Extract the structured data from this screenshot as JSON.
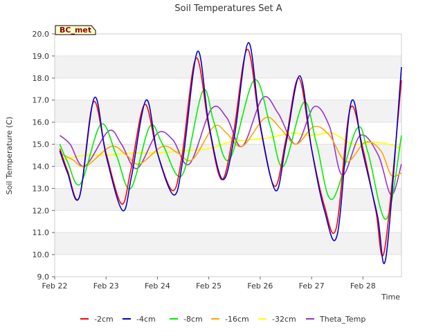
{
  "chart_data": {
    "type": "line",
    "title": "Soil Temperatures Set A",
    "xlabel": "Time",
    "ylabel": "Soil Temperature (C)",
    "badge": "BC_met",
    "ylim": [
      9.0,
      20.0
    ],
    "xlim": [
      0,
      6.75
    ],
    "yticks": [
      "9.0",
      "10.0",
      "11.0",
      "12.0",
      "13.0",
      "14.0",
      "15.0",
      "16.0",
      "17.0",
      "18.0",
      "19.0",
      "20.0"
    ],
    "xticks": [
      {
        "label": "Feb 22",
        "x": 0
      },
      {
        "label": "Feb 23",
        "x": 1
      },
      {
        "label": "Feb 24",
        "x": 2
      },
      {
        "label": "Feb 25",
        "x": 3
      },
      {
        "label": "Feb 26",
        "x": 4
      },
      {
        "label": "Feb 27",
        "x": 5
      },
      {
        "label": "Feb 28",
        "x": 6
      }
    ],
    "grid": true,
    "legend_position": "bottom",
    "series": [
      {
        "name": "-2cm",
        "color": "#ff0000",
        "points": [
          [
            0.1,
            14.8
          ],
          [
            0.25,
            13.8
          ],
          [
            0.48,
            12.6
          ],
          [
            0.75,
            16.9
          ],
          [
            1.0,
            14.6
          ],
          [
            1.3,
            12.3
          ],
          [
            1.48,
            13.8
          ],
          [
            1.75,
            16.8
          ],
          [
            2.0,
            14.6
          ],
          [
            2.3,
            12.9
          ],
          [
            2.48,
            14.5
          ],
          [
            2.75,
            18.9
          ],
          [
            3.0,
            15.8
          ],
          [
            3.25,
            13.4
          ],
          [
            3.48,
            15.5
          ],
          [
            3.75,
            19.3
          ],
          [
            4.0,
            15.8
          ],
          [
            4.28,
            13.1
          ],
          [
            4.5,
            15.2
          ],
          [
            4.75,
            18.0
          ],
          [
            5.0,
            14.8
          ],
          [
            5.25,
            12.2
          ],
          [
            5.48,
            11.2
          ],
          [
            5.75,
            16.6
          ],
          [
            6.0,
            14.8
          ],
          [
            6.25,
            12.0
          ],
          [
            6.42,
            10.2
          ],
          [
            6.75,
            17.9
          ]
        ]
      },
      {
        "name": "-4cm",
        "color": "#0000cc",
        "points": [
          [
            0.1,
            14.7
          ],
          [
            0.25,
            13.7
          ],
          [
            0.48,
            12.6
          ],
          [
            0.77,
            17.1
          ],
          [
            1.0,
            14.5
          ],
          [
            1.32,
            12.0
          ],
          [
            1.5,
            13.6
          ],
          [
            1.78,
            17.0
          ],
          [
            2.0,
            14.6
          ],
          [
            2.32,
            12.7
          ],
          [
            2.5,
            14.4
          ],
          [
            2.78,
            19.2
          ],
          [
            3.0,
            15.9
          ],
          [
            3.27,
            13.4
          ],
          [
            3.5,
            15.4
          ],
          [
            3.77,
            19.6
          ],
          [
            4.0,
            15.9
          ],
          [
            4.3,
            12.9
          ],
          [
            4.5,
            15.0
          ],
          [
            4.77,
            18.1
          ],
          [
            5.0,
            14.8
          ],
          [
            5.25,
            12.0
          ],
          [
            5.5,
            10.9
          ],
          [
            5.77,
            16.9
          ],
          [
            6.0,
            14.6
          ],
          [
            6.28,
            11.8
          ],
          [
            6.45,
            9.9
          ],
          [
            6.75,
            18.5
          ]
        ]
      },
      {
        "name": "-8cm",
        "color": "#00ee00",
        "points": [
          [
            0.1,
            15.0
          ],
          [
            0.25,
            14.2
          ],
          [
            0.5,
            13.2
          ],
          [
            0.9,
            15.9
          ],
          [
            1.2,
            14.5
          ],
          [
            1.48,
            13.0
          ],
          [
            1.85,
            15.8
          ],
          [
            2.1,
            15.0
          ],
          [
            2.48,
            13.6
          ],
          [
            2.88,
            17.4
          ],
          [
            3.1,
            16.0
          ],
          [
            3.4,
            14.3
          ],
          [
            3.88,
            17.9
          ],
          [
            4.2,
            15.8
          ],
          [
            4.45,
            14.0
          ],
          [
            4.85,
            16.9
          ],
          [
            5.1,
            15.0
          ],
          [
            5.4,
            12.5
          ],
          [
            5.88,
            15.7
          ],
          [
            6.1,
            14.6
          ],
          [
            6.45,
            11.6
          ],
          [
            6.75,
            15.4
          ]
        ]
      },
      {
        "name": "-16cm",
        "color": "#ffa500",
        "points": [
          [
            0.1,
            14.6
          ],
          [
            0.35,
            14.3
          ],
          [
            0.6,
            14.0
          ],
          [
            1.1,
            14.9
          ],
          [
            1.4,
            14.5
          ],
          [
            1.65,
            14.1
          ],
          [
            2.1,
            14.9
          ],
          [
            2.4,
            14.6
          ],
          [
            2.68,
            14.3
          ],
          [
            3.1,
            15.8
          ],
          [
            3.35,
            15.5
          ],
          [
            3.65,
            14.9
          ],
          [
            4.1,
            16.2
          ],
          [
            4.4,
            15.7
          ],
          [
            4.7,
            15.0
          ],
          [
            5.05,
            15.8
          ],
          [
            5.35,
            15.4
          ],
          [
            5.68,
            14.2
          ],
          [
            6.05,
            15.1
          ],
          [
            6.35,
            14.7
          ],
          [
            6.55,
            13.6
          ],
          [
            6.75,
            13.7
          ]
        ]
      },
      {
        "name": "-32cm",
        "color": "#ffff00",
        "points": [
          [
            0.1,
            14.3
          ],
          [
            0.6,
            14.5
          ],
          [
            1.0,
            14.5
          ],
          [
            1.5,
            14.6
          ],
          [
            2.0,
            14.6
          ],
          [
            2.5,
            14.7
          ],
          [
            3.0,
            14.8
          ],
          [
            3.4,
            15.1
          ],
          [
            3.8,
            15.2
          ],
          [
            4.2,
            15.3
          ],
          [
            4.6,
            15.5
          ],
          [
            5.0,
            15.4
          ],
          [
            5.4,
            15.5
          ],
          [
            5.8,
            15.0
          ],
          [
            6.2,
            15.1
          ],
          [
            6.5,
            15.0
          ],
          [
            6.75,
            14.8
          ]
        ]
      },
      {
        "name": "Theta_Temp",
        "color": "#9933cc",
        "points": [
          [
            0.1,
            15.4
          ],
          [
            0.3,
            15.0
          ],
          [
            0.58,
            14.0
          ],
          [
            1.05,
            15.6
          ],
          [
            1.3,
            15.0
          ],
          [
            1.6,
            13.9
          ],
          [
            2.0,
            15.5
          ],
          [
            2.3,
            15.2
          ],
          [
            2.62,
            14.1
          ],
          [
            3.05,
            16.6
          ],
          [
            3.35,
            16.2
          ],
          [
            3.65,
            14.9
          ],
          [
            4.05,
            17.1
          ],
          [
            4.35,
            16.4
          ],
          [
            4.7,
            15.0
          ],
          [
            5.05,
            16.7
          ],
          [
            5.35,
            15.8
          ],
          [
            5.6,
            13.6
          ],
          [
            5.95,
            15.4
          ],
          [
            6.3,
            14.5
          ],
          [
            6.55,
            12.7
          ],
          [
            6.75,
            14.1
          ]
        ]
      }
    ]
  }
}
